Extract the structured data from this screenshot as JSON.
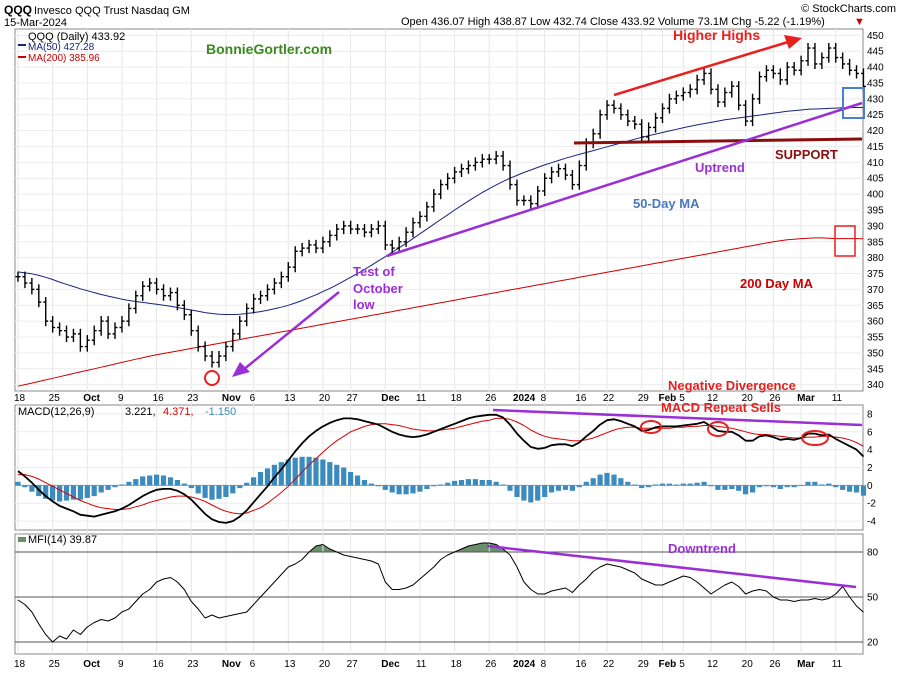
{
  "header": {
    "symbol": "QQQ",
    "name": "Invesco QQQ Trust Nasdaq GM",
    "date": "15-Mar-2024",
    "brand": "© StockCharts.com",
    "ohlc": "Open 436.07  High 438.87  Low 432.74  Close 433.92  Volume 73.1M  Chg -5.22 (-1.19%)",
    "chg_arrow": "▼"
  },
  "legend": {
    "price": "QQQ (Daily) 433.92",
    "ma50": "MA(50) 427.28",
    "ma200": "MA(200) 385.96",
    "macd_name": "MACD(12,26,9)",
    "macd_v1": "3.221,",
    "macd_v2": "4.371,",
    "macd_v3": "-1.150",
    "mfi": "MFI(14) 39.87"
  },
  "colors": {
    "price_bars": "#000000",
    "ma50": "#1a237e",
    "ma200": "#cc0000",
    "macd_line": "#000000",
    "signal_line": "#dd0000",
    "histogram": "#3b8bbf",
    "mfi_line": "#000000",
    "mfi_fill": "#6b8e6b",
    "trend_purple": "#9b2fd6",
    "higher_highs_red": "#e8201e",
    "support": "#8b0d0d",
    "brand_green": "#3a8a1f",
    "label_blue": "#4a78c0",
    "box_blue": "#4a7fd0"
  },
  "annotations": {
    "site": "BonnieGortler.com",
    "higher_highs": "Higher Highs",
    "support": "SUPPORT",
    "uptrend": "Uptrend",
    "ma50_label": "50-Day MA",
    "ma200_label": "200 Day MA",
    "test_line1": "Test of",
    "test_line2": "October",
    "test_line3": "low",
    "neg_div": "Negative Divergence",
    "macd_sells": "MACD Repeat Sells",
    "downtrend": "Downtrend"
  },
  "x_labels": [
    {
      "i": 0,
      "t": "18",
      "b": false
    },
    {
      "i": 5,
      "t": "25",
      "b": false
    },
    {
      "i": 10,
      "t": "Oct",
      "b": true
    },
    {
      "i": 15,
      "t": "9",
      "b": false
    },
    {
      "i": 20,
      "t": "16",
      "b": false
    },
    {
      "i": 25,
      "t": "23",
      "b": false
    },
    {
      "i": 30,
      "t": "Nov",
      "b": true
    },
    {
      "i": 34,
      "t": "6",
      "b": false
    },
    {
      "i": 39,
      "t": "13",
      "b": false
    },
    {
      "i": 44,
      "t": "20",
      "b": false
    },
    {
      "i": 48,
      "t": "27",
      "b": false
    },
    {
      "i": 53,
      "t": "Dec",
      "b": true
    },
    {
      "i": 58,
      "t": "11",
      "b": false
    },
    {
      "i": 63,
      "t": "18",
      "b": false
    },
    {
      "i": 68,
      "t": "26",
      "b": false
    },
    {
      "i": 72,
      "t": "2024",
      "b": true
    },
    {
      "i": 76,
      "t": "8",
      "b": false
    },
    {
      "i": 81,
      "t": "16",
      "b": false
    },
    {
      "i": 85,
      "t": "22",
      "b": false
    },
    {
      "i": 90,
      "t": "29",
      "b": false
    },
    {
      "i": 93,
      "t": "Feb",
      "b": true
    },
    {
      "i": 96,
      "t": "5",
      "b": false
    },
    {
      "i": 100,
      "t": "12",
      "b": false
    },
    {
      "i": 105,
      "t": "20",
      "b": false
    },
    {
      "i": 109,
      "t": "26",
      "b": false
    },
    {
      "i": 113,
      "t": "Mar",
      "b": true
    },
    {
      "i": 118,
      "t": "11",
      "b": false
    }
  ],
  "chart_data": [
    {
      "type": "line",
      "panel": "price",
      "title": "QQQ (Daily) 433.92",
      "ylim": [
        338,
        452
      ],
      "y_ticks": [
        340,
        345,
        350,
        355,
        360,
        365,
        370,
        375,
        380,
        385,
        390,
        395,
        400,
        405,
        410,
        415,
        420,
        425,
        430,
        435,
        440,
        445,
        450
      ],
      "close": [
        374,
        372,
        370,
        366,
        360,
        358,
        357,
        355,
        356,
        352,
        354,
        357,
        360,
        356,
        358,
        360,
        364,
        368,
        371,
        372,
        370,
        368,
        369,
        365,
        362,
        357,
        352,
        349,
        347,
        349,
        352,
        356,
        360,
        364,
        367,
        368,
        370,
        372,
        374,
        377,
        382,
        383,
        384,
        383,
        385,
        387,
        389,
        390,
        389,
        389,
        388,
        389,
        390,
        384,
        383,
        385,
        388,
        391,
        393,
        396,
        400,
        403,
        405,
        407,
        408,
        409,
        410,
        411,
        411,
        412,
        409,
        403,
        398,
        398,
        397,
        401,
        405,
        407,
        408,
        406,
        403,
        409,
        416,
        419,
        425,
        428,
        427,
        425,
        423,
        422,
        418,
        421,
        424,
        427,
        430,
        431,
        432,
        433,
        436,
        438,
        433,
        429,
        432,
        434,
        428,
        423,
        430,
        437,
        439,
        438,
        436,
        440,
        439,
        442,
        446,
        441,
        443,
        446,
        443,
        441,
        439,
        438,
        433.92
      ],
      "ma50": [
        375.5,
        375.2,
        374.9,
        374.4,
        373.8,
        373.1,
        372.3,
        371.6,
        370.9,
        370.2,
        369.6,
        369.0,
        368.4,
        367.9,
        367.4,
        366.9,
        366.5,
        366.2,
        365.9,
        365.6,
        365.3,
        365.0,
        364.7,
        364.3,
        363.9,
        363.5,
        363.1,
        362.7,
        362.4,
        362.2,
        362.1,
        362.1,
        362.2,
        362.4,
        362.7,
        363.0,
        363.4,
        363.9,
        364.4,
        365.0,
        365.7,
        366.5,
        367.4,
        368.3,
        369.3,
        370.3,
        371.4,
        372.6,
        373.8,
        375.0,
        376.3,
        377.6,
        379.0,
        380.3,
        381.7,
        383.1,
        384.5,
        386.0,
        387.5,
        389.0,
        390.5,
        392.0,
        393.5,
        395.0,
        396.4,
        397.8,
        399.2,
        400.5,
        401.7,
        402.9,
        404.0,
        405.0,
        405.9,
        406.8,
        407.6,
        408.4,
        409.2,
        409.9,
        410.6,
        411.3,
        411.9,
        412.5,
        413.1,
        413.7,
        414.3,
        414.9,
        415.5,
        416.1,
        416.7,
        417.3,
        417.9,
        418.4,
        418.9,
        419.4,
        419.9,
        420.4,
        420.9,
        421.4,
        421.8,
        422.2,
        422.6,
        423.0,
        423.4,
        423.7,
        424.0,
        424.3,
        424.6,
        424.9,
        425.2,
        425.5,
        425.8,
        426.1,
        426.3,
        426.5,
        426.7,
        426.8,
        426.9,
        427.0,
        427.1,
        427.2,
        427.2,
        427.3,
        427.28
      ],
      "ma200": [
        339.5,
        340.0,
        340.5,
        341.0,
        341.5,
        342.0,
        342.5,
        343.0,
        343.5,
        344.0,
        344.5,
        345.0,
        345.5,
        346.0,
        346.5,
        347.0,
        347.5,
        348.0,
        348.5,
        349.0,
        349.4,
        349.8,
        350.2,
        350.6,
        351.0,
        351.4,
        351.8,
        352.2,
        352.6,
        353.0,
        353.4,
        353.8,
        354.2,
        354.6,
        355.0,
        355.4,
        355.8,
        356.2,
        356.6,
        357.0,
        357.4,
        357.8,
        358.2,
        358.6,
        359.0,
        359.4,
        359.8,
        360.2,
        360.6,
        361.0,
        361.4,
        361.8,
        362.2,
        362.6,
        363.0,
        363.4,
        363.8,
        364.2,
        364.6,
        365.0,
        365.4,
        365.8,
        366.2,
        366.6,
        367.0,
        367.4,
        367.8,
        368.2,
        368.6,
        369.0,
        369.4,
        369.8,
        370.2,
        370.6,
        371.0,
        371.4,
        371.8,
        372.2,
        372.6,
        373.0,
        373.4,
        373.8,
        374.2,
        374.6,
        375.0,
        375.4,
        375.8,
        376.2,
        376.6,
        377.0,
        377.4,
        377.8,
        378.2,
        378.6,
        379.0,
        379.4,
        379.8,
        380.2,
        380.6,
        381.0,
        381.4,
        381.8,
        382.2,
        382.6,
        383.0,
        383.4,
        383.8,
        384.2,
        384.6,
        385.0,
        385.3,
        385.6,
        385.8,
        386.0,
        386.1,
        386.2,
        386.2,
        386.1,
        386.0,
        386.0,
        386.0,
        386.0,
        385.96
      ]
    },
    {
      "type": "line",
      "panel": "macd",
      "title": "MACD(12,26,9) 3.221, 4.371, -1.150",
      "ylim": [
        -5,
        9
      ],
      "y_ticks": [
        -4,
        -2,
        0,
        2,
        4,
        6,
        8
      ],
      "macd": [
        1.6,
        1.0,
        0.3,
        -0.5,
        -1.2,
        -1.8,
        -2.3,
        -2.6,
        -2.9,
        -3.3,
        -3.4,
        -3.5,
        -3.3,
        -3.1,
        -2.9,
        -2.6,
        -2.2,
        -1.7,
        -1.2,
        -0.8,
        -0.5,
        -0.4,
        -0.4,
        -0.6,
        -1.0,
        -1.6,
        -2.4,
        -3.2,
        -3.8,
        -4.1,
        -4.2,
        -4.0,
        -3.5,
        -2.8,
        -1.9,
        -1.0,
        -0.1,
        0.9,
        1.8,
        2.8,
        3.8,
        4.7,
        5.5,
        6.1,
        6.6,
        7.0,
        7.3,
        7.5,
        7.5,
        7.4,
        7.2,
        7.0,
        6.8,
        6.4,
        6.0,
        5.7,
        5.5,
        5.4,
        5.5,
        5.7,
        6.0,
        6.3,
        6.6,
        6.9,
        7.2,
        7.5,
        7.7,
        7.8,
        7.9,
        7.9,
        7.6,
        6.8,
        5.8,
        5.0,
        4.3,
        4.1,
        4.2,
        4.5,
        4.6,
        4.6,
        4.4,
        4.8,
        5.5,
        6.1,
        6.8,
        7.3,
        7.4,
        7.2,
        6.9,
        6.6,
        6.1,
        6.2,
        6.5,
        6.6,
        6.6,
        6.6,
        6.7,
        6.8,
        6.9,
        7.1,
        6.6,
        6.1,
        6.0,
        6.0,
        5.6,
        5.0,
        5.0,
        5.5,
        5.6,
        5.4,
        5.1,
        5.2,
        5.1,
        5.3,
        5.8,
        5.8,
        5.6,
        5.7,
        5.2,
        4.8,
        4.4,
        4.0,
        3.221
      ],
      "signal": [
        1.2,
        1.2,
        1.0,
        0.7,
        0.3,
        -0.1,
        -0.5,
        -0.9,
        -1.3,
        -1.7,
        -2.0,
        -2.3,
        -2.5,
        -2.6,
        -2.7,
        -2.7,
        -2.6,
        -2.4,
        -2.2,
        -1.9,
        -1.7,
        -1.5,
        -1.3,
        -1.2,
        -1.2,
        -1.3,
        -1.5,
        -1.8,
        -2.2,
        -2.6,
        -2.9,
        -3.1,
        -3.2,
        -3.1,
        -2.8,
        -2.5,
        -2.0,
        -1.4,
        -0.8,
        -0.1,
        0.7,
        1.5,
        2.3,
        3.0,
        3.7,
        4.4,
        5.0,
        5.5,
        6.0,
        6.3,
        6.6,
        6.8,
        6.9,
        6.9,
        6.8,
        6.7,
        6.5,
        6.3,
        6.2,
        6.1,
        6.1,
        6.2,
        6.3,
        6.4,
        6.6,
        6.8,
        7.0,
        7.2,
        7.3,
        7.5,
        7.5,
        7.4,
        7.1,
        6.7,
        6.2,
        5.8,
        5.5,
        5.3,
        5.2,
        5.1,
        5.0,
        5.0,
        5.1,
        5.3,
        5.6,
        5.9,
        6.2,
        6.4,
        6.5,
        6.5,
        6.4,
        6.4,
        6.4,
        6.4,
        6.4,
        6.5,
        6.5,
        6.6,
        6.6,
        6.7,
        6.7,
        6.6,
        6.5,
        6.4,
        6.2,
        6.0,
        5.8,
        5.7,
        5.7,
        5.6,
        5.5,
        5.4,
        5.3,
        5.3,
        5.4,
        5.4,
        5.5,
        5.5,
        5.4,
        5.3,
        5.1,
        4.8,
        4.371
      ]
    },
    {
      "type": "line",
      "panel": "mfi",
      "title": "MFI(14) 39.87",
      "ylim": [
        12,
        92
      ],
      "y_ticks": [
        20,
        50,
        80
      ],
      "mfi": [
        48,
        45,
        40,
        32,
        25,
        20,
        24,
        22,
        28,
        25,
        30,
        33,
        35,
        34,
        36,
        40,
        42,
        47,
        52,
        55,
        60,
        62,
        63,
        60,
        55,
        47,
        42,
        36,
        38,
        36,
        37,
        38,
        39,
        40,
        45,
        50,
        55,
        60,
        65,
        70,
        72,
        75,
        80,
        84,
        85,
        82,
        80,
        78,
        77,
        76,
        75,
        74,
        72,
        60,
        55,
        55,
        56,
        58,
        62,
        66,
        70,
        75,
        78,
        80,
        82,
        84,
        85,
        86,
        86,
        85,
        82,
        78,
        70,
        60,
        55,
        52,
        52,
        54,
        55,
        56,
        53,
        58,
        62,
        67,
        70,
        72,
        71,
        70,
        68,
        66,
        62,
        60,
        58,
        58,
        60,
        62,
        64,
        63,
        60,
        56,
        52,
        55,
        58,
        60,
        57,
        52,
        54,
        55,
        54,
        50,
        48,
        48,
        47,
        48,
        48,
        49,
        48,
        49,
        52,
        57,
        50,
        44,
        39.87
      ]
    }
  ]
}
